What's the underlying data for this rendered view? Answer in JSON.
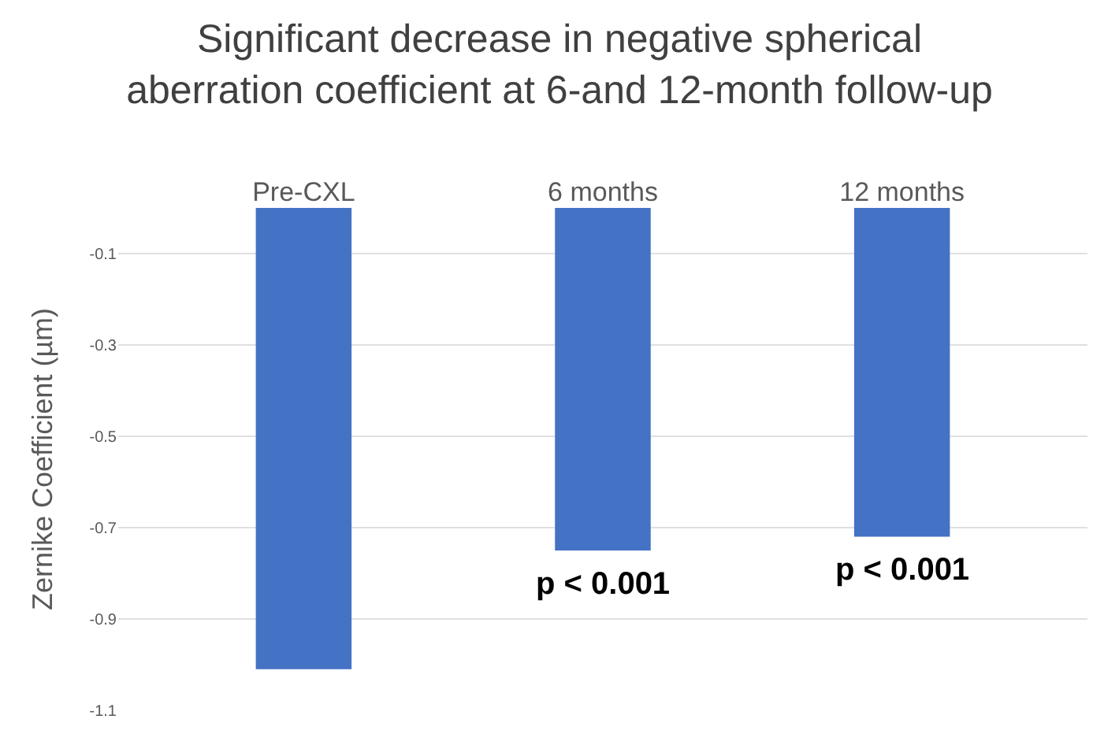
{
  "chart_data": {
    "type": "bar",
    "title": "Significant decrease in negative spherical aberration coefficient at 6-and 12-month follow-up",
    "ylabel": "Zernike Coefficient (µm)",
    "categories": [
      "Pre-CXL",
      "6 months",
      "12 months"
    ],
    "values": [
      -1.01,
      -0.75,
      -0.72
    ],
    "color": "#4472c4",
    "ylim": [
      -1.1,
      0
    ],
    "yticks": [
      -0.1,
      -0.3,
      -0.5,
      -0.7,
      -0.9,
      -1.1
    ],
    "grid": "y",
    "annotations": [
      "p < 0.001",
      "p < 0.001"
    ]
  }
}
